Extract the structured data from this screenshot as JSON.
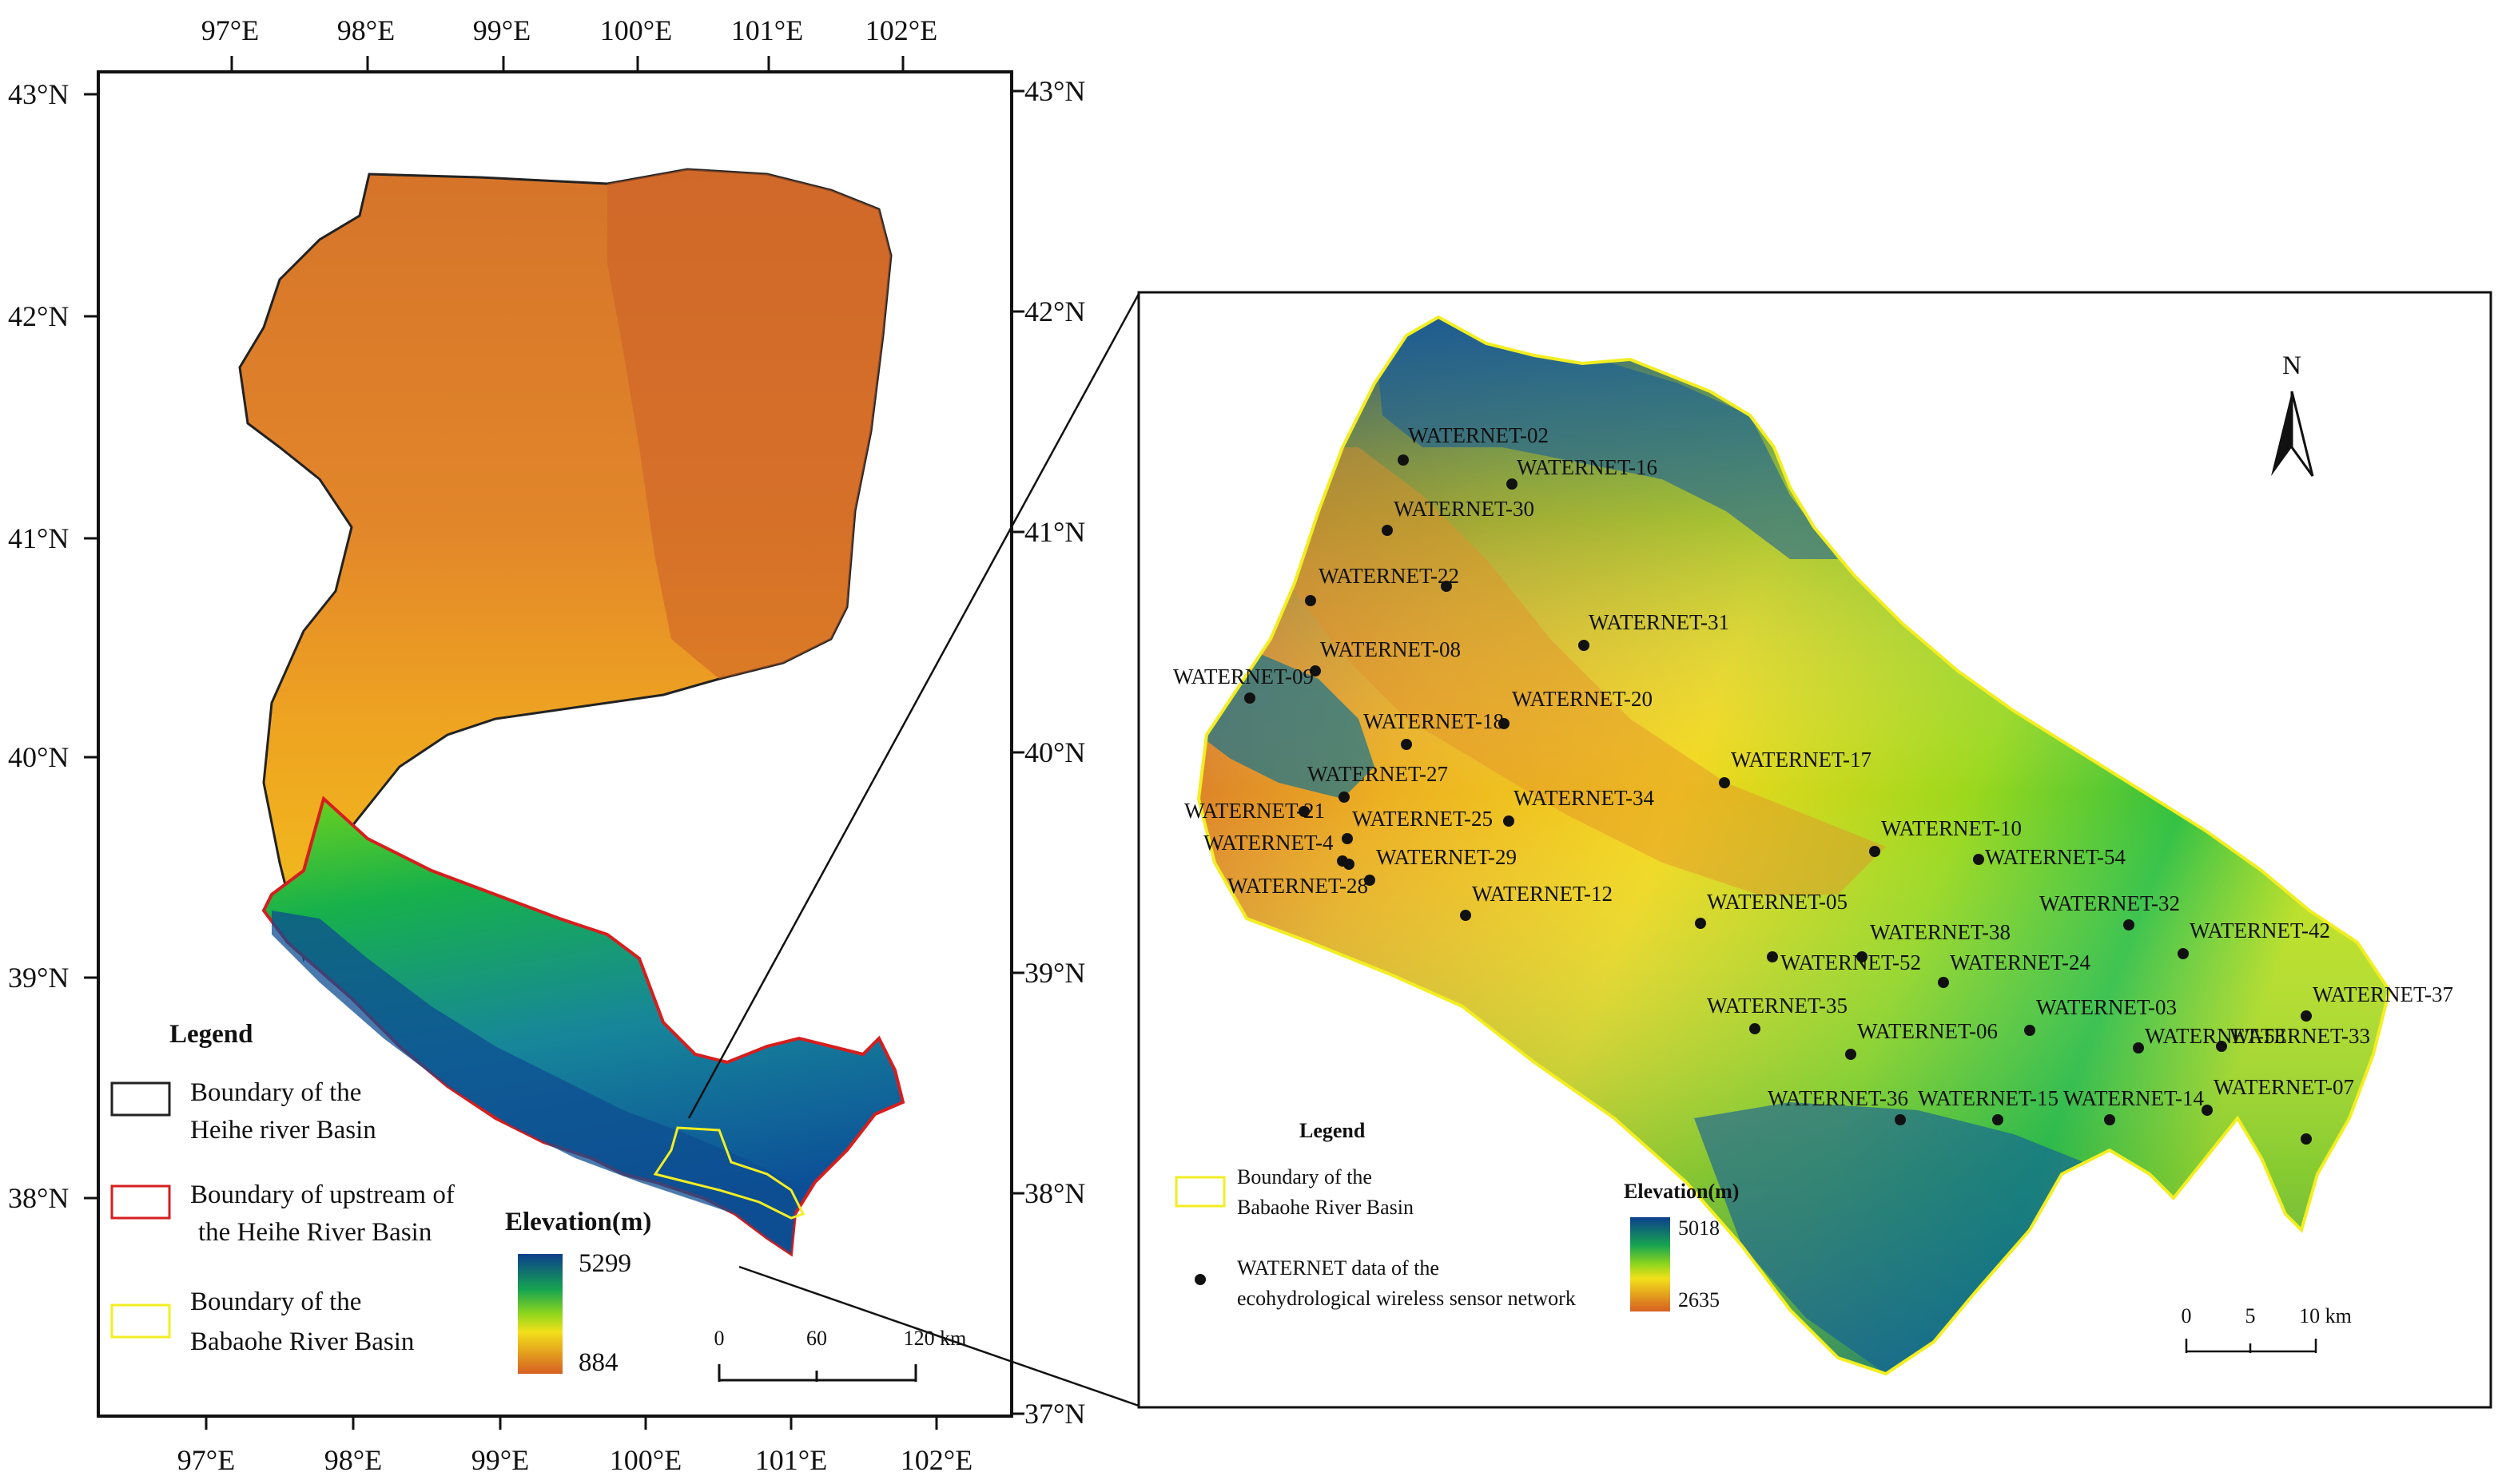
{
  "colors": {
    "high": "#0b4f9a",
    "mid_high": "#13a84a",
    "mid": "#8fd61c",
    "mid_low": "#f5e21a",
    "low": "#e6891b",
    "lowest": "#c95a22",
    "heihe_boundary": "#222222",
    "upstream_boundary": "#d61e1e",
    "babaohe_boundary": "#f2ee22"
  },
  "left_map": {
    "top_ticks": [
      "97°E",
      "98°E",
      "99°E",
      "100°E",
      "101°E",
      "102°E"
    ],
    "bottom_ticks": [
      "97°E",
      "98°E",
      "99°E",
      "100°E",
      "101°E",
      "102°E"
    ],
    "left_ticks": [
      "43°N",
      "42°N",
      "41°N",
      "40°N",
      "39°N",
      "38°N"
    ],
    "right_ticks": [
      "43°N",
      "42°N",
      "41°N",
      "40°N",
      "39°N",
      "38°N",
      "37°N"
    ],
    "legend": {
      "title": "Legend",
      "items": [
        {
          "label_1": "Boundary of the",
          "label_2": "Heihe river Basin"
        },
        {
          "label_1": "Boundary of  upstream of",
          "label_2": "the Heihe River Basin"
        },
        {
          "label_1": "Boundary of the",
          "label_2": "Babaohe River Basin"
        }
      ]
    },
    "elevation": {
      "title": "Elevation(m)",
      "max": "5299",
      "min": "884"
    },
    "scale": {
      "ticks": [
        "0",
        "60",
        "120 km"
      ]
    }
  },
  "right_map": {
    "north_label": "N",
    "stations": [
      {
        "name": "WATERNET-02"
      },
      {
        "name": "WATERNET-16"
      },
      {
        "name": "WATERNET-30"
      },
      {
        "name": "WATERNET-22"
      },
      {
        "name": "WATERNET-31"
      },
      {
        "name": "WATERNET-08"
      },
      {
        "name": "WATERNET-09"
      },
      {
        "name": "WATERNET-20"
      },
      {
        "name": "WATERNET-18"
      },
      {
        "name": "WATERNET-17"
      },
      {
        "name": "WATERNET-27"
      },
      {
        "name": "WATERNET-21"
      },
      {
        "name": "WATERNET-34"
      },
      {
        "name": "WATERNET-25"
      },
      {
        "name": "WATERNET-4"
      },
      {
        "name": "WATERNET-10"
      },
      {
        "name": "WATERNET-29"
      },
      {
        "name": "WATERNET-54"
      },
      {
        "name": "WATERNET-28"
      },
      {
        "name": "WATERNET-12"
      },
      {
        "name": "WATERNET-05"
      },
      {
        "name": "WATERNET-32"
      },
      {
        "name": "WATERNET-38"
      },
      {
        "name": "WATERNET-42"
      },
      {
        "name": "WATERNET-52"
      },
      {
        "name": "WATERNET-24"
      },
      {
        "name": "WATERNET-37"
      },
      {
        "name": "WATERNET-35"
      },
      {
        "name": "WATERNET-03"
      },
      {
        "name": "WATERNET-06"
      },
      {
        "name": "WATERNET-53"
      },
      {
        "name": "WATERNET-33"
      },
      {
        "name": "WATERNET-07"
      },
      {
        "name": "WATERNET-36"
      },
      {
        "name": "WATERNET-15"
      },
      {
        "name": "WATERNET-14"
      }
    ],
    "legend": {
      "title": "Legend",
      "boundary_1": "Boundary of the",
      "boundary_2": "Babaohe River Basin",
      "points_1": "WATERNET data of the",
      "points_2": "ecohydrological wireless sensor network"
    },
    "elevation": {
      "title": "Elevation(m)",
      "max": "5018",
      "min": "2635"
    },
    "scale": {
      "ticks": [
        "0",
        "5",
        "10 km"
      ]
    }
  }
}
